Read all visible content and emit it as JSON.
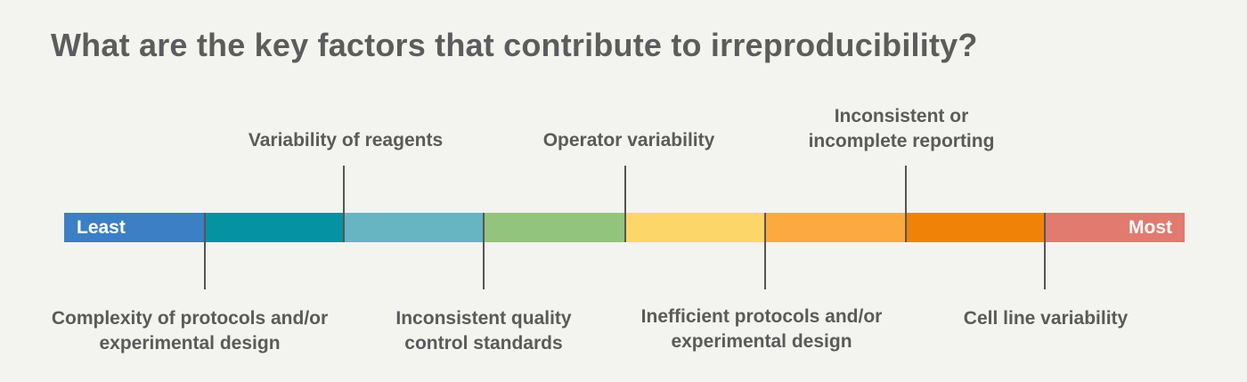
{
  "title": "What are the key factors that contribute to irreproducibility?",
  "scale": {
    "least_label": "Least",
    "most_label": "Most",
    "segment_colors": [
      "#3c7fc4",
      "#0592a1",
      "#67b4c2",
      "#93c47d",
      "#fcd668",
      "#fca93f",
      "#f08208",
      "#e17a6f"
    ]
  },
  "factors_above": [
    {
      "lines": [
        "Variability of reagents"
      ]
    },
    {
      "lines": [
        "Operator variability"
      ]
    },
    {
      "lines": [
        "Inconsistent or",
        "incomplete reporting"
      ]
    }
  ],
  "factors_below": [
    {
      "lines": [
        "Complexity of protocols and/or",
        "experimental design"
      ]
    },
    {
      "lines": [
        "Inconsistent quality",
        "control standards"
      ]
    },
    {
      "lines": [
        "Inefficient protocols and/or",
        "experimental design"
      ]
    },
    {
      "lines": [
        "Cell line variability"
      ]
    }
  ]
}
